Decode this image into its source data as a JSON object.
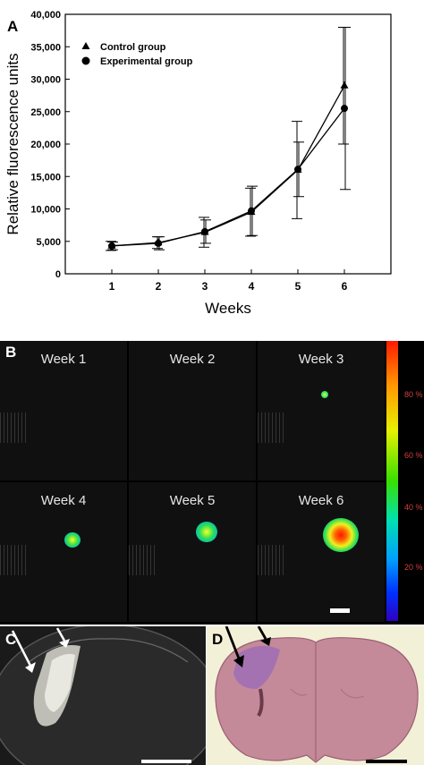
{
  "panels": {
    "a": "A",
    "b": "B",
    "c": "C",
    "d": "D"
  },
  "chart_data": {
    "type": "line",
    "xlabel": "Weeks",
    "ylabel": "Relative fluorescence units",
    "x": [
      1,
      2,
      3,
      4,
      5,
      6
    ],
    "xlim": [
      0,
      7
    ],
    "ylim": [
      0,
      40000
    ],
    "yticks": [
      "0",
      "5,000",
      "10,000",
      "15,000",
      "20,000",
      "25,000",
      "30,000",
      "35,000",
      "40,000"
    ],
    "yticks_values": [
      0,
      5000,
      10000,
      15000,
      20000,
      25000,
      30000,
      35000,
      40000
    ],
    "legend_position": "top-left",
    "series": [
      {
        "name": "Control group",
        "marker": "triangle",
        "values": [
          4300,
          4800,
          6400,
          9500,
          16000,
          29000
        ],
        "error": [
          700,
          900,
          2300,
          3700,
          7500,
          9000
        ]
      },
      {
        "name": "Experimental group",
        "marker": "circle",
        "values": [
          4300,
          4700,
          6500,
          9700,
          16100,
          25500
        ],
        "error": [
          600,
          1000,
          1800,
          3800,
          4200,
          12500
        ]
      }
    ]
  },
  "imaging": {
    "weeks": [
      "Week 1",
      "Week 2",
      "Week 3",
      "Week 4",
      "Week 5",
      "Week 6"
    ],
    "colorbar_ticks": [
      "80 %",
      "60 %",
      "40 %",
      "20 %"
    ],
    "colorbar_tick_values": [
      80,
      60,
      40,
      20
    ]
  }
}
